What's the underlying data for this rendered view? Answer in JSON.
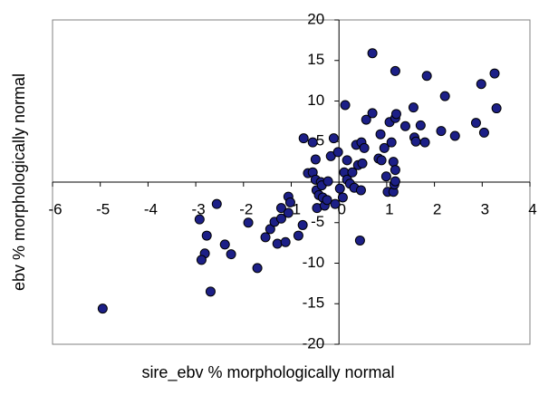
{
  "chart_data": {
    "type": "scatter",
    "xlabel": "sire_ebv % morphologically normal",
    "ylabel": "ebv % morphologically normal",
    "xlim": [
      -6,
      4
    ],
    "ylim": [
      -20,
      20
    ],
    "xticks": [
      -6,
      -5,
      -4,
      -3,
      -2,
      -1,
      0,
      1,
      2,
      3,
      4
    ],
    "yticks": [
      -20,
      -15,
      -10,
      -5,
      5,
      10,
      15,
      20
    ],
    "color": "#1c1f87",
    "x": [
      -4.95,
      -2.56,
      -2.92,
      -2.77,
      -2.81,
      -2.88,
      -2.69,
      -2.39,
      -2.26,
      -1.9,
      -1.71,
      -1.54,
      -1.44,
      -1.35,
      -1.21,
      -1.29,
      -1.12,
      -1.21,
      -1.06,
      -1.06,
      -1.02,
      -0.85,
      -0.76,
      -0.74,
      -0.55,
      -0.65,
      -0.55,
      -0.49,
      -0.49,
      -0.47,
      -0.46,
      -0.42,
      -0.38,
      -0.36,
      -0.34,
      -0.3,
      -0.25,
      -0.23,
      -0.17,
      -0.11,
      -0.08,
      -0.02,
      0.02,
      0.08,
      0.11,
      0.17,
      0.17,
      0.13,
      0.23,
      0.28,
      0.32,
      0.36,
      0.4,
      0.46,
      0.44,
      0.47,
      0.53,
      0.49,
      0.57,
      0.7,
      0.7,
      0.83,
      0.87,
      0.89,
      0.95,
      0.99,
      1.02,
      1.06,
      1.1,
      1.14,
      1.14,
      1.16,
      1.18,
      1.18,
      1.2,
      1.18,
      1.18,
      1.39,
      1.56,
      1.58,
      1.61,
      1.71,
      1.8,
      1.84,
      2.14,
      2.22,
      2.43,
      2.87,
      2.98,
      3.04,
      3.26,
      3.3
    ],
    "values": [
      -15.6,
      -2.7,
      -4.6,
      -6.6,
      -8.8,
      -9.6,
      -13.5,
      -7.7,
      -8.9,
      -5.0,
      -10.6,
      -6.8,
      -5.8,
      -4.9,
      -4.5,
      -7.6,
      -7.4,
      -3.2,
      -3.8,
      -1.8,
      -2.5,
      -6.6,
      -5.3,
      5.4,
      4.9,
      1.1,
      1.2,
      2.8,
      0.3,
      -1.0,
      -3.2,
      -1.6,
      0,
      -0.4,
      -1.9,
      -2.9,
      -2.2,
      0.1,
      3.2,
      5.4,
      -2.7,
      3.7,
      -0.8,
      -1.9,
      1.2,
      0.3,
      2.7,
      9.5,
      -0.2,
      1.2,
      -0.7,
      4.6,
      2.1,
      -1.0,
      -7.2,
      4.9,
      4.2,
      2.3,
      7.7,
      8.5,
      15.9,
      2.9,
      5.9,
      2.7,
      4.2,
      0.7,
      -1.2,
      7.4,
      4.9,
      2.5,
      -1.2,
      -0.3,
      13.7,
      7.9,
      8.4,
      1.5,
      0.1,
      6.9,
      9.2,
      5.5,
      5.0,
      7.0,
      4.9,
      13.1,
      6.3,
      10.6,
      5.7,
      7.3,
      12.1,
      6.1,
      13.4,
      9.1
    ]
  }
}
